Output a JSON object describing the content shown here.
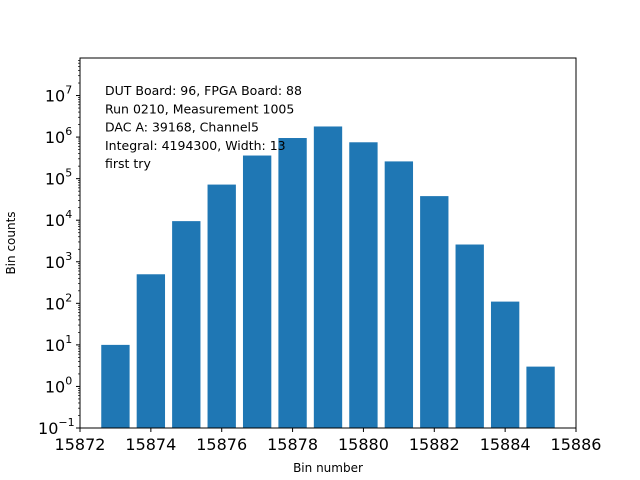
{
  "chart_data": {
    "type": "bar",
    "title": "",
    "xlabel": "Bin number",
    "ylabel": "Bin counts",
    "yscale": "log",
    "xlim": [
      15872,
      15886
    ],
    "ylim": [
      0.1,
      80000000
    ],
    "x_ticks": [
      15872,
      15874,
      15876,
      15878,
      15880,
      15882,
      15884,
      15886
    ],
    "y_tick_exponents": [
      -1,
      0,
      1,
      2,
      3,
      4,
      5,
      6,
      7
    ],
    "y_tick_base": "10",
    "bar_color": "#1f77b4",
    "bar_width": 0.8,
    "grid": false,
    "legend": "none",
    "x": [
      15873,
      15874,
      15875,
      15876,
      15877,
      15878,
      15879,
      15880,
      15881,
      15882,
      15883,
      15884,
      15885
    ],
    "values": [
      10,
      500,
      9500,
      72000,
      360000,
      950000,
      1800000,
      750000,
      260000,
      38000,
      2600,
      110,
      3
    ],
    "annotation_lines": [
      "DUT Board: 96, FPGA Board: 88",
      "Run 0210, Measurement 1005",
      "DAC A: 39168, Channel5",
      "Integral: 4194300, Width: 13",
      "first try"
    ]
  }
}
